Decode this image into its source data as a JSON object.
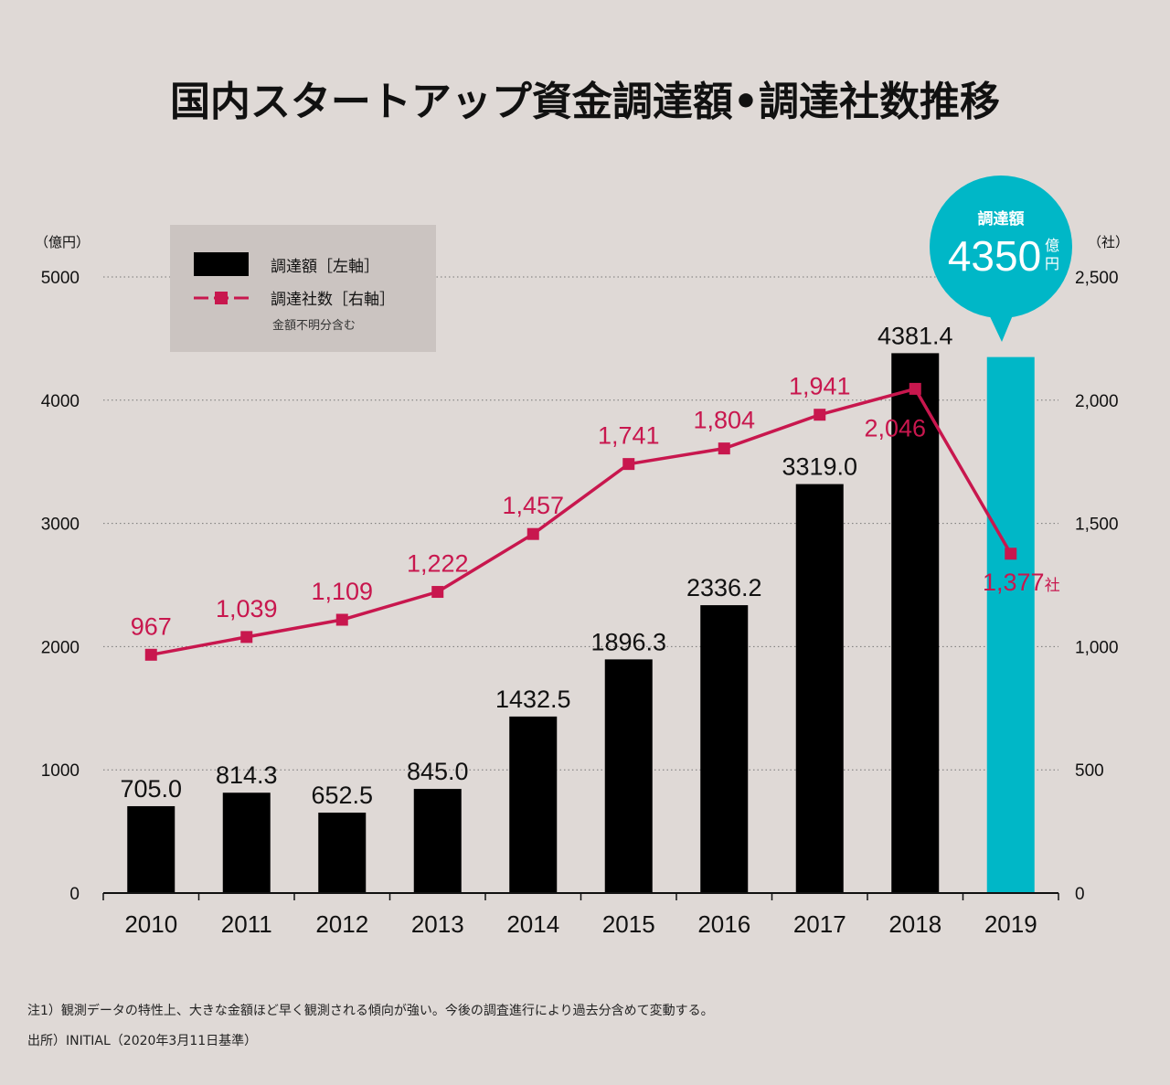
{
  "title": "国内スタートアップ資金調達額•調達社数推移",
  "left_axis_unit": "（億円）",
  "right_axis_unit": "（社）",
  "legend": {
    "bar_label": "調達額［左軸］",
    "line_label": "調達社数［右軸］",
    "line_note": "金額不明分含む"
  },
  "callout": {
    "title": "調達額",
    "value": "4350",
    "unit_line1": "億",
    "unit_line2": "円"
  },
  "line_last_unit": "社",
  "colors": {
    "bar": "#000000",
    "highlight_bar": "#00b7c7",
    "line": "#c8174e",
    "background": "#dfd9d6",
    "legend_bg": "#cbc4c1"
  },
  "notes": [
    "注1）観測データの特性上、大きな金額ほど早く観測される傾向が強い。今後の調査進行により過去分含めて変動する。",
    "出所）INITIAL（2020年3月11日基準）"
  ],
  "chart_data": {
    "type": "bar+line",
    "categories": [
      "2010",
      "2011",
      "2012",
      "2013",
      "2014",
      "2015",
      "2016",
      "2017",
      "2018",
      "2019"
    ],
    "series": [
      {
        "name": "調達額",
        "axis": "left",
        "values": [
          705.0,
          814.3,
          652.5,
          845.0,
          1432.5,
          1896.3,
          2336.2,
          3319.0,
          4381.4,
          4350
        ],
        "labels": [
          "705.0",
          "814.3",
          "652.5",
          "845.0",
          "1432.5",
          "1896.3",
          "2336.2",
          "3319.0",
          "4381.4",
          ""
        ]
      },
      {
        "name": "調達社数",
        "axis": "right",
        "values": [
          967,
          1039,
          1109,
          1222,
          1457,
          1741,
          1804,
          1941,
          2046,
          1377
        ],
        "labels": [
          "967",
          "1,039",
          "1,109",
          "1,222",
          "1,457",
          "1,741",
          "1,804",
          "1,941",
          "2,046",
          "1,377"
        ]
      }
    ],
    "y_left": {
      "range": [
        0,
        5000
      ],
      "ticks": [
        "0",
        "1000",
        "2000",
        "3000",
        "4000",
        "5000"
      ]
    },
    "y_right": {
      "range": [
        0,
        2500
      ],
      "ticks": [
        "0",
        "500",
        "1,000",
        "1,500",
        "2,000",
        "2,500"
      ]
    }
  }
}
